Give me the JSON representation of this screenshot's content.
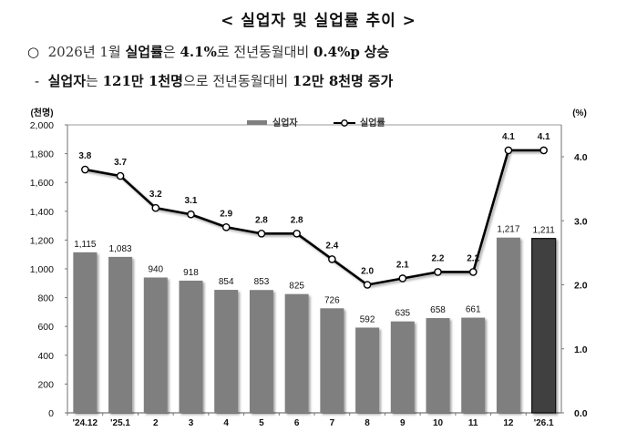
{
  "header": {
    "title": "< 실업자 및 실업률 추이 >",
    "bullet1": {
      "marker": "○",
      "parts": [
        "2026년 1월 ",
        "실업률",
        "은 ",
        "4.1%",
        "로 전년동월대비 ",
        "0.4%p",
        " ",
        "상승"
      ]
    },
    "bullet2": {
      "marker": "-",
      "parts": [
        "실업자",
        "는 ",
        "121만 1천명",
        "으로 전년동월대비 ",
        "12만 8천명",
        " ",
        "증가"
      ]
    }
  },
  "chart_data": {
    "type": "bar+line",
    "title": "실업자 및 실업률 추이",
    "categories": [
      "'24.12",
      "'25.1",
      "2",
      "3",
      "4",
      "5",
      "6",
      "7",
      "8",
      "9",
      "10",
      "11",
      "12",
      "'26.1"
    ],
    "series": [
      {
        "name": "실업자",
        "type": "bar",
        "axis": "left",
        "unit": "천명",
        "values": [
          1115,
          1083,
          940,
          918,
          854,
          853,
          825,
          726,
          592,
          635,
          658,
          661,
          1217,
          1211
        ],
        "labels": [
          "1,115",
          "1,083",
          "940",
          "918",
          "854",
          "853",
          "825",
          "726",
          "592",
          "635",
          "658",
          "661",
          "1,217",
          "1,211"
        ]
      },
      {
        "name": "실업률",
        "type": "line",
        "axis": "right",
        "unit": "%",
        "values": [
          3.8,
          3.7,
          3.2,
          3.1,
          2.9,
          2.8,
          2.8,
          2.4,
          2.0,
          2.1,
          2.2,
          2.2,
          4.1,
          4.1
        ],
        "labels": [
          "3.8",
          "3.7",
          "3.2",
          "3.1",
          "2.9",
          "2.8",
          "2.8",
          "2.4",
          "2.0",
          "2.1",
          "2.2",
          "2.2",
          "4.1",
          "4.1"
        ]
      }
    ],
    "left_axis": {
      "label": "(천명)",
      "ylim": [
        0,
        2000
      ],
      "ticks": [
        "0",
        "200",
        "400",
        "600",
        "800",
        "1,000",
        "1,200",
        "1,400",
        "1,600",
        "1,800",
        "2,000"
      ]
    },
    "right_axis": {
      "label": "(%)",
      "ylim": [
        0,
        4.0
      ],
      "ticks": [
        "0.0",
        "1.0",
        "2.0",
        "3.0",
        "4.0"
      ]
    },
    "legend": {
      "position": "top-center",
      "entries": [
        "실업자",
        "실업률"
      ]
    },
    "colors": {
      "bar": "#7f7f7f",
      "bar_highlight": "#3f3f3f",
      "line": "#000000",
      "marker_fill": "#ffffff"
    },
    "grid": false
  }
}
